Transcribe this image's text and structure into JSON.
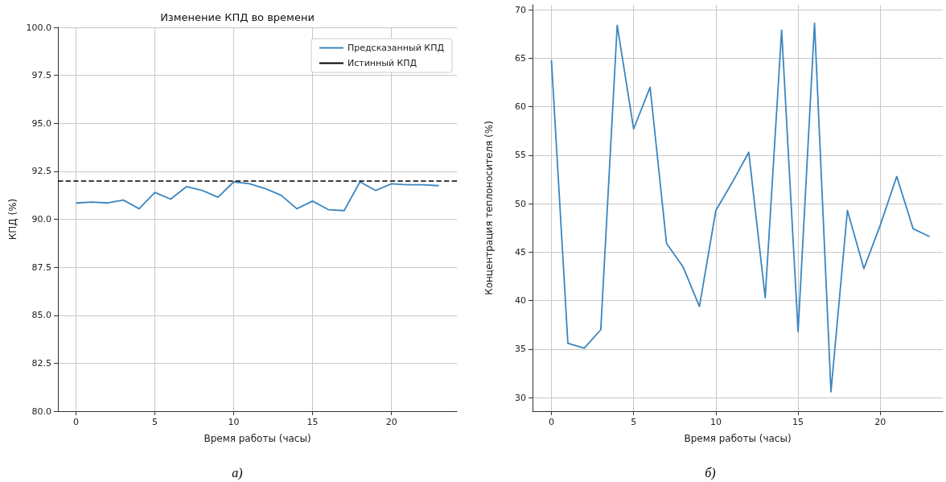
{
  "chart_data": [
    {
      "type": "line",
      "title": "Изменение КПД во времени",
      "xlabel": "Время работы (часы)",
      "ylabel": "КПД (%)",
      "annotations": [
        "а)"
      ],
      "x": [
        0,
        1,
        2,
        3,
        4,
        5,
        6,
        7,
        8,
        9,
        10,
        11,
        12,
        13,
        14,
        15,
        16,
        17,
        18,
        19,
        20,
        21,
        22,
        23
      ],
      "series": [
        {
          "name": "Предсказанный КПД",
          "color": "#3b86c0",
          "values": [
            90.85,
            90.9,
            90.85,
            91.0,
            90.55,
            91.4,
            91.05,
            91.7,
            91.5,
            91.15,
            91.95,
            91.85,
            91.6,
            91.25,
            90.55,
            90.95,
            90.5,
            90.45,
            91.95,
            91.5,
            91.85,
            91.8,
            91.8,
            91.75
          ]
        }
      ],
      "ref_lines": [
        {
          "axis": "y",
          "value": 92,
          "label": "Истинный КПД",
          "color": "#000000",
          "line_style": "dashed"
        }
      ],
      "xlim": [
        -1.15,
        24.15
      ],
      "xticks": [
        0,
        5,
        10,
        15,
        20
      ],
      "ylim": [
        80,
        100
      ],
      "yticks": [
        {
          "value": 80,
          "label": "80.0"
        },
        {
          "value": 82.5,
          "label": "82.5"
        },
        {
          "value": 85,
          "label": "85.0"
        },
        {
          "value": 87.5,
          "label": "87.5"
        },
        {
          "value": 90,
          "label": "90.0"
        },
        {
          "value": 92.5,
          "label": "92.5"
        },
        {
          "value": 95,
          "label": "95.0"
        },
        {
          "value": 97.5,
          "label": "97.5"
        },
        {
          "value": 100,
          "label": "100.0"
        }
      ],
      "grid": true,
      "legend": "top right"
    },
    {
      "type": "line",
      "xlabel": "Время работы (часы)",
      "ylabel": "Концентрация теплоносителя (%)",
      "annotations": [
        "б)"
      ],
      "x": [
        0,
        1,
        2,
        3,
        4,
        5,
        6,
        7,
        8,
        9,
        10,
        11,
        12,
        13,
        14,
        15,
        16,
        17,
        18,
        19,
        20,
        21,
        22,
        23
      ],
      "series": [
        {
          "color": "#3b86c0",
          "values": [
            64.8,
            35.6,
            35.1,
            37.0,
            68.4,
            57.7,
            62.0,
            45.9,
            43.5,
            39.4,
            49.3,
            52.2,
            55.3,
            40.3,
            67.9,
            36.8,
            68.6,
            30.6,
            49.3,
            43.3,
            47.8,
            52.8,
            47.4,
            46.6
          ]
        }
      ],
      "xlim": [
        -1.15,
        23.8
      ],
      "xticks": [
        0,
        5,
        10,
        15,
        20
      ],
      "ylim": [
        28.6,
        70.5
      ],
      "yticks": [
        30,
        35,
        40,
        45,
        50,
        55,
        60,
        65,
        70
      ],
      "grid": true
    }
  ]
}
